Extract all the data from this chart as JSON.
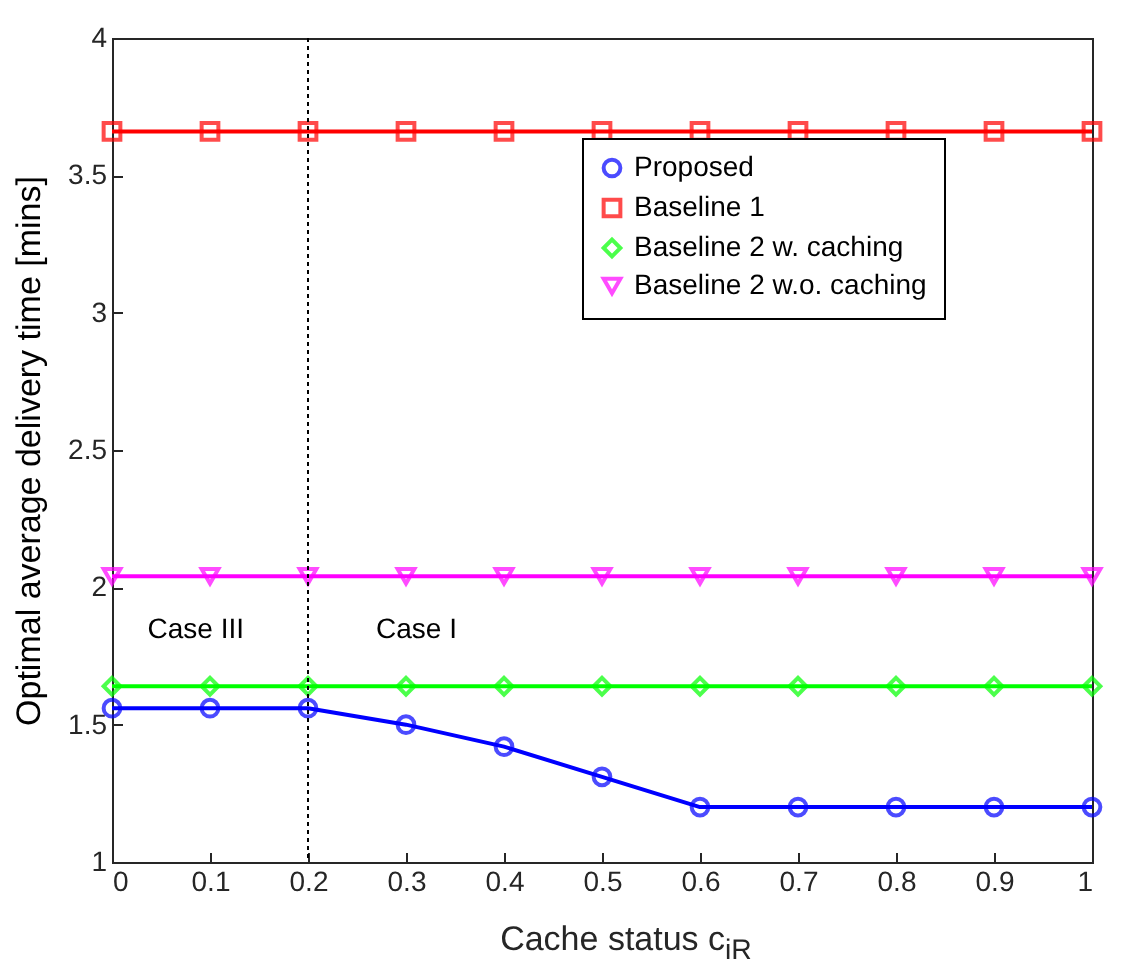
{
  "chart_data": {
    "type": "line",
    "xlabel": "Cache status c$_{iR}$",
    "ylabel": "Optimal average delivery time [mins]",
    "x": [
      0,
      0.1,
      0.2,
      0.3,
      0.4,
      0.5,
      0.6,
      0.7,
      0.8,
      0.9,
      1
    ],
    "series": [
      {
        "name": "Proposed",
        "color": "#0000ff",
        "marker": "circle",
        "values": [
          1.56,
          1.56,
          1.56,
          1.5,
          1.42,
          1.31,
          1.2,
          1.2,
          1.2,
          1.2,
          1.2
        ]
      },
      {
        "name": "Baseline 1",
        "color": "#ff0000",
        "marker": "square",
        "values": [
          3.66,
          3.66,
          3.66,
          3.66,
          3.66,
          3.66,
          3.66,
          3.66,
          3.66,
          3.66,
          3.66
        ]
      },
      {
        "name": "Baseline 2 w. caching",
        "color": "#00ff00",
        "marker": "diamond",
        "values": [
          1.64,
          1.64,
          1.64,
          1.64,
          1.64,
          1.64,
          1.64,
          1.64,
          1.64,
          1.64,
          1.64
        ]
      },
      {
        "name": "Baseline 2 w.o. caching",
        "color": "#ff00ff",
        "marker": "triangle",
        "values": [
          2.04,
          2.04,
          2.04,
          2.04,
          2.04,
          2.04,
          2.04,
          2.04,
          2.04,
          2.04,
          2.04
        ]
      }
    ],
    "xlim": [
      0,
      1
    ],
    "xticks": [
      0,
      0.1,
      0.2,
      0.3,
      0.4,
      0.5,
      0.6,
      0.7,
      0.8,
      0.9,
      1
    ],
    "ylim": [
      1,
      4
    ],
    "yticks": [
      1,
      1.5,
      2,
      2.5,
      3,
      3.5,
      4
    ],
    "ref_lines": [
      {
        "axis": "x",
        "value": 0.2,
        "color": "#000000",
        "line_style": "dotted"
      }
    ],
    "annotations": [
      "Case III",
      "Case I"
    ],
    "legend": "top right",
    "grid": false,
    "line_style": "solid"
  }
}
